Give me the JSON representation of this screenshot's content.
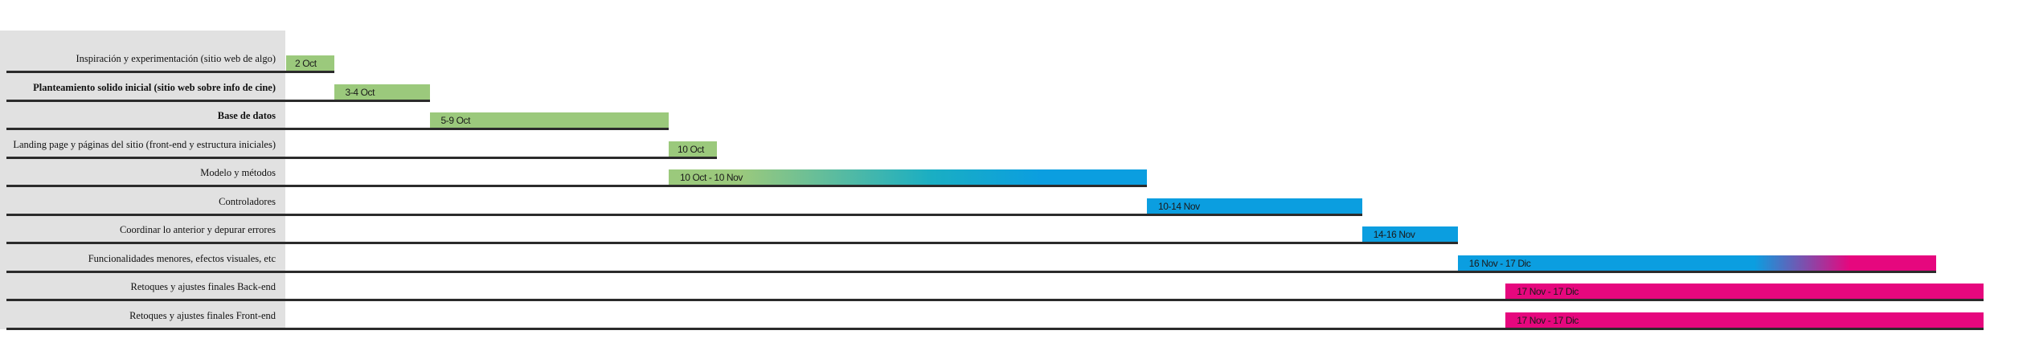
{
  "chart_data": {
    "type": "gantt",
    "tasks": [
      {
        "name": "Inspiración y experimentación (sitio web de algo)",
        "bold": false,
        "start": 0,
        "end": 1,
        "label": "2 Oct",
        "style": "green"
      },
      {
        "name": "Planteamiento solido inicial (sitio web sobre info de cine)",
        "bold": true,
        "start": 1,
        "end": 3,
        "label": "3-4 Oct",
        "style": "green"
      },
      {
        "name": "Base de datos",
        "bold": true,
        "start": 3,
        "end": 8,
        "label": "5-9 Oct",
        "style": "green"
      },
      {
        "name": "Landing page y páginas del sitio (front-end y estructura iniciales)",
        "bold": false,
        "start": 8,
        "end": 9,
        "label": "10 Oct",
        "style": "green"
      },
      {
        "name": "Modelo y métodos",
        "bold": false,
        "start": 8,
        "end": 18,
        "label": "10 Oct - 10 Nov",
        "style": "green-to-blue"
      },
      {
        "name": "Controladores",
        "bold": false,
        "start": 18,
        "end": 22.5,
        "label": "10-14 Nov",
        "style": "blue"
      },
      {
        "name": "Coordinar lo anterior y depurar errores",
        "bold": false,
        "start": 22.5,
        "end": 24.5,
        "label": "14-16 Nov",
        "style": "blue"
      },
      {
        "name": "Funcionalidades menores, efectos visuales, etc",
        "bold": false,
        "start": 24.5,
        "end": 34.5,
        "label": "16 Nov - 17 Dic",
        "style": "blue-to-pink"
      },
      {
        "name": "Retoques y ajustes finales Back-end",
        "bold": false,
        "start": 25.5,
        "end": 35.5,
        "label": "17 Nov - 17 Dic",
        "style": "pink"
      },
      {
        "name": "Retoques y ajustes finales Front-end",
        "bold": false,
        "start": 25.5,
        "end": 35.5,
        "label": "17 Nov - 17 Dic",
        "style": "pink"
      }
    ],
    "colors": {
      "green": "#9bc97c",
      "blue": "#0b9ee0",
      "teal": "#1aaec3",
      "pink": "#e6077e",
      "label_bg": "#e1e1e1",
      "row_line": "#2b2b2b"
    }
  }
}
